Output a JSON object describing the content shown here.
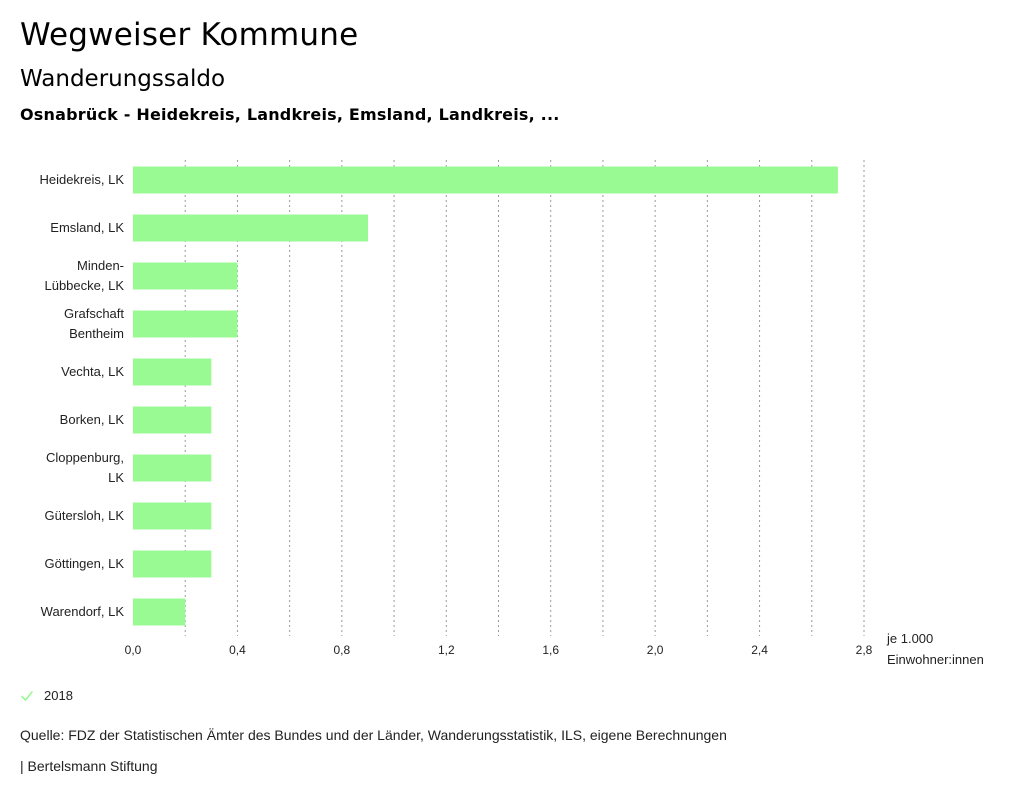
{
  "header": {
    "title": "Wegweiser Kommune",
    "subtitle": "Wanderungssaldo",
    "filter": "Osnabrück - Heidekreis, Landkreis, Emsland, Landkreis, ..."
  },
  "chart_data": {
    "type": "bar",
    "orientation": "horizontal",
    "categories": [
      "Heidekreis, LK",
      "Emsland, LK",
      "Minden-Lübbecke, LK",
      "Grafschaft Bentheim",
      "Vechta, LK",
      "Borken, LK",
      "Cloppenburg, LK",
      "Gütersloh, LK",
      "Göttingen, LK",
      "Warendorf, LK"
    ],
    "category_label_lines": [
      [
        "Heidekreis, LK"
      ],
      [
        "Emsland, LK"
      ],
      [
        "Minden-",
        "Lübbecke, LK"
      ],
      [
        "Grafschaft",
        "Bentheim"
      ],
      [
        "Vechta, LK"
      ],
      [
        "Borken, LK"
      ],
      [
        "Cloppenburg,",
        "LK"
      ],
      [
        "Gütersloh, LK"
      ],
      [
        "Göttingen, LK"
      ],
      [
        "Warendorf, LK"
      ]
    ],
    "series": [
      {
        "name": "2018",
        "values": [
          2.7,
          0.9,
          0.4,
          0.4,
          0.3,
          0.3,
          0.3,
          0.3,
          0.3,
          0.2
        ]
      }
    ],
    "xlim": [
      0,
      2.8
    ],
    "xticks": [
      0,
      0.4,
      0.8,
      1.2,
      1.6,
      2.0,
      2.4,
      2.8
    ],
    "xtick_labels": [
      "0,0",
      "0,4",
      "0,8",
      "1,2",
      "1,6",
      "2,0",
      "2,4",
      "2,8"
    ],
    "xlabel_lines": [
      "je 1.000",
      "Einwohner:innen"
    ],
    "grid": "vertical dotted",
    "bar_color": "#99f993"
  },
  "legend": {
    "items": [
      {
        "label": "2018",
        "color": "#99f993"
      }
    ]
  },
  "footer": {
    "source": "Quelle: FDZ der Statistischen Ämter des Bundes und der Länder, Wanderungsstatistik, ILS, eigene Berechnungen",
    "credit": "| Bertelsmann Stiftung"
  }
}
